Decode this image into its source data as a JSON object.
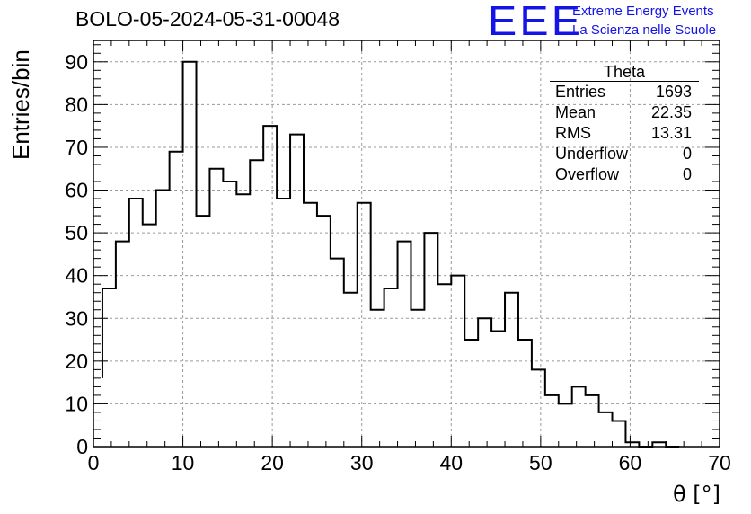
{
  "title": "BOLO-05-2024-05-31-00048",
  "logo": {
    "mark": "EEE",
    "line1": "Extreme Energy Events",
    "line2": "La Scienza nelle Scuole",
    "color": "#1414e6"
  },
  "stats": {
    "title": "Theta",
    "rows": [
      {
        "label": "Entries",
        "value": "1693"
      },
      {
        "label": "Mean",
        "value": "22.35"
      },
      {
        "label": "RMS",
        "value": "13.31"
      },
      {
        "label": "Underflow",
        "value": "0"
      },
      {
        "label": "Overflow",
        "value": "0"
      }
    ]
  },
  "chart_data": {
    "type": "histogram",
    "title": "BOLO-05-2024-05-31-00048",
    "xlabel": "θ [°]",
    "ylabel": "Entries/bin",
    "xlim": [
      0,
      70
    ],
    "ylim": [
      0,
      95
    ],
    "xticks": [
      0,
      10,
      20,
      30,
      40,
      50,
      60,
      70
    ],
    "yticks": [
      0,
      10,
      20,
      30,
      40,
      50,
      60,
      70,
      80,
      90
    ],
    "grid": true,
    "bin_width": 1.5,
    "bin_start": 1,
    "values": [
      37,
      48,
      58,
      52,
      60,
      69,
      90,
      54,
      65,
      62,
      59,
      67,
      75,
      58,
      73,
      57,
      54,
      44,
      36,
      57,
      32,
      37,
      48,
      32,
      50,
      38,
      40,
      25,
      30,
      27,
      36,
      25,
      18,
      12,
      10,
      14,
      12,
      8,
      6,
      1,
      0,
      1,
      0
    ],
    "first_bin_partial": {
      "x0": 1,
      "value": 16
    }
  }
}
